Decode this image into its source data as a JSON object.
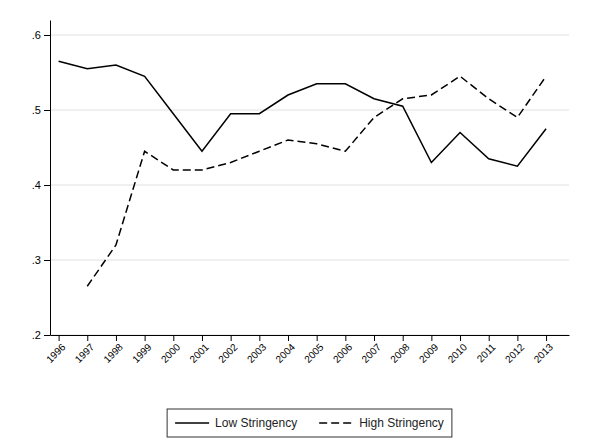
{
  "chart_data": {
    "type": "line",
    "x": [
      1996,
      1997,
      1998,
      1999,
      2000,
      2001,
      2002,
      2003,
      2004,
      2005,
      2006,
      2007,
      2008,
      2009,
      2010,
      2011,
      2012,
      2013
    ],
    "xlim": [
      1995.7,
      2013.8
    ],
    "xticks": [
      1996,
      1997,
      1998,
      1999,
      2000,
      2001,
      2002,
      2003,
      2004,
      2005,
      2006,
      2007,
      2008,
      2009,
      2010,
      2011,
      2012,
      2013
    ],
    "ylim": [
      0.2,
      0.62
    ],
    "yticks": [
      {
        "value": 0.2,
        "label": ".2"
      },
      {
        "value": 0.3,
        "label": ".3"
      },
      {
        "value": 0.4,
        "label": ".4"
      },
      {
        "value": 0.5,
        "label": ".5"
      },
      {
        "value": 0.6,
        "label": ".6"
      }
    ],
    "grid": true,
    "legend": "bottom",
    "series": [
      {
        "name": "Low Stringency",
        "color": "#000000",
        "line_style": "solid",
        "values": [
          0.565,
          0.555,
          0.56,
          0.545,
          0.495,
          0.445,
          0.495,
          0.495,
          0.52,
          0.535,
          0.535,
          0.515,
          0.505,
          0.43,
          0.47,
          0.435,
          0.425,
          0.475
        ]
      },
      {
        "name": "High Stringency",
        "color": "#000000",
        "line_style": "dashed",
        "values": [
          null,
          0.265,
          0.32,
          0.445,
          0.42,
          0.42,
          0.43,
          0.445,
          0.46,
          0.455,
          0.445,
          0.49,
          0.515,
          0.52,
          0.545,
          0.515,
          0.49,
          0.545
        ]
      }
    ]
  }
}
